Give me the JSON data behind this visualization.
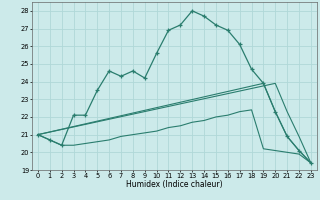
{
  "xlabel": "Humidex (Indice chaleur)",
  "xlim": [
    -0.5,
    23.5
  ],
  "ylim": [
    19,
    28.5
  ],
  "xticks": [
    0,
    1,
    2,
    3,
    4,
    5,
    6,
    7,
    8,
    9,
    10,
    11,
    12,
    13,
    14,
    15,
    16,
    17,
    18,
    19,
    20,
    21,
    22,
    23
  ],
  "yticks": [
    19,
    20,
    21,
    22,
    23,
    24,
    25,
    26,
    27,
    28
  ],
  "line_color": "#2a7d6e",
  "bg_color": "#cceaea",
  "grid_color": "#b0d8d8",
  "line1_x": [
    0,
    1,
    2,
    3,
    4,
    5,
    6,
    7,
    8,
    9,
    10,
    11,
    12,
    13,
    14,
    15,
    16,
    17,
    18,
    19,
    20,
    21,
    22,
    23
  ],
  "line1_y": [
    21.0,
    20.7,
    20.4,
    22.1,
    22.1,
    23.5,
    24.6,
    24.3,
    24.6,
    24.2,
    25.6,
    26.9,
    27.2,
    28.0,
    27.7,
    27.2,
    26.9,
    26.1,
    24.7,
    23.9,
    22.3,
    20.9,
    20.1,
    19.4
  ],
  "line2_x": [
    0,
    20,
    21,
    22,
    23
  ],
  "line2_y": [
    21.0,
    23.9,
    22.3,
    20.9,
    19.4
  ],
  "line3_x": [
    0,
    19,
    20,
    21,
    22,
    23
  ],
  "line3_y": [
    21.0,
    23.9,
    22.3,
    20.9,
    20.1,
    19.4
  ],
  "line4_x": [
    0,
    1,
    2,
    3,
    4,
    5,
    6,
    7,
    8,
    9,
    10,
    11,
    12,
    13,
    14,
    15,
    16,
    17,
    18,
    19,
    20,
    21,
    22,
    23
  ],
  "line4_y": [
    21.0,
    20.7,
    20.4,
    20.4,
    20.5,
    20.6,
    20.7,
    20.9,
    21.0,
    21.1,
    21.2,
    21.4,
    21.5,
    21.7,
    21.8,
    22.0,
    22.1,
    22.3,
    22.4,
    20.2,
    20.1,
    20.0,
    19.9,
    19.4
  ]
}
